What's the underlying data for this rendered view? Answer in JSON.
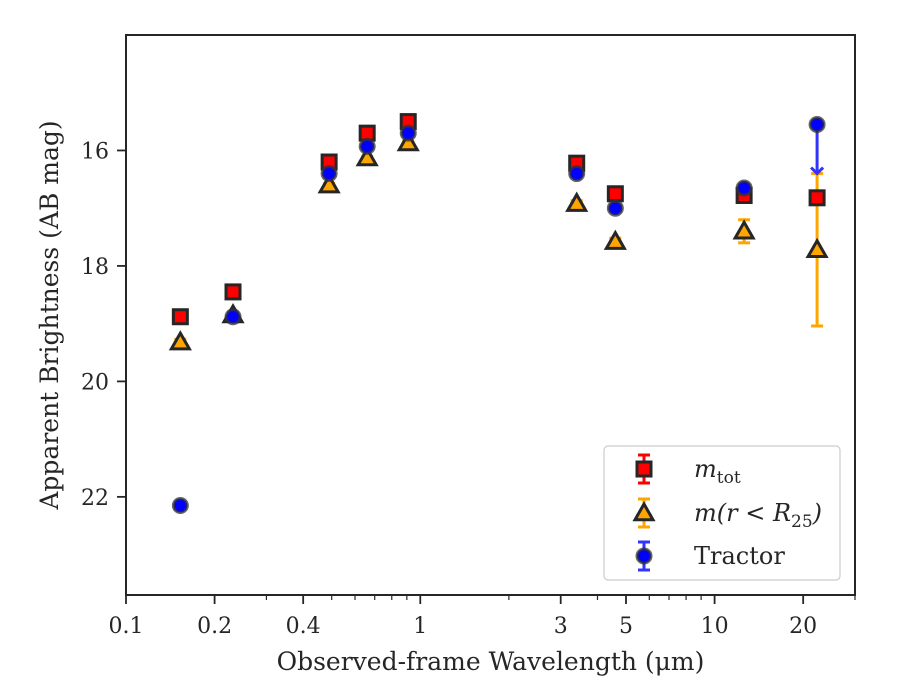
{
  "chart_data": {
    "type": "scatter",
    "xlabel": "Observed-frame Wavelength (μm)",
    "ylabel": "Apparent Brightness (AB mag)",
    "x_scale": "log",
    "xlim": [
      0.1,
      30
    ],
    "ylim": [
      23.7,
      14.0
    ],
    "y_inverted": true,
    "x_ticks": [
      {
        "value": 0.1,
        "label": "0.1"
      },
      {
        "value": 0.2,
        "label": "0.2"
      },
      {
        "value": 0.4,
        "label": "0.4"
      },
      {
        "value": 1,
        "label": "1"
      },
      {
        "value": 3,
        "label": "3"
      },
      {
        "value": 5,
        "label": "5"
      },
      {
        "value": 10,
        "label": "10"
      },
      {
        "value": 20,
        "label": "20"
      }
    ],
    "y_ticks": [
      {
        "value": 16,
        "label": "16"
      },
      {
        "value": 18,
        "label": "18"
      },
      {
        "value": 20,
        "label": "20"
      },
      {
        "value": 22,
        "label": "22"
      }
    ],
    "grid": false,
    "legend_position": "bottom-right",
    "series": [
      {
        "name": "m_tot",
        "legend_main": "m",
        "legend_sub": "tot",
        "marker": "square",
        "color": "#ff0000",
        "error_color": "#ff0000",
        "points": [
          {
            "x": 0.153,
            "y": 18.88,
            "err": 0.04
          },
          {
            "x": 0.231,
            "y": 18.45,
            "err": 0.03
          },
          {
            "x": 0.49,
            "y": 16.2,
            "err": 0.02
          },
          {
            "x": 0.66,
            "y": 15.7,
            "err": 0.02
          },
          {
            "x": 0.91,
            "y": 15.5,
            "err": 0.02
          },
          {
            "x": 3.4,
            "y": 16.22,
            "err": 0.03
          },
          {
            "x": 4.6,
            "y": 16.75,
            "err": 0.03
          },
          {
            "x": 12.6,
            "y": 16.78,
            "err": 0.05
          },
          {
            "x": 22.3,
            "y": 16.82,
            "err": 0.05
          }
        ]
      },
      {
        "name": "m(r<R25)",
        "legend_main": "m(r < R",
        "legend_sub": "25",
        "legend_tail": ")",
        "marker": "triangle",
        "color": "#ffa500",
        "error_color": "#ffa500",
        "points": [
          {
            "x": 0.153,
            "y": 19.32,
            "err": 0.05
          },
          {
            "x": 0.231,
            "y": 18.85,
            "err": 0.04
          },
          {
            "x": 0.49,
            "y": 16.6,
            "err": 0.03
          },
          {
            "x": 0.66,
            "y": 16.13,
            "err": 0.03
          },
          {
            "x": 0.91,
            "y": 15.87,
            "err": 0.03
          },
          {
            "x": 3.4,
            "y": 16.92,
            "err": 0.05
          },
          {
            "x": 4.6,
            "y": 17.58,
            "err": 0.06
          },
          {
            "x": 12.6,
            "y": 17.4,
            "err": 0.2
          },
          {
            "x": 22.3,
            "y": 17.72,
            "err": 1.32
          }
        ]
      },
      {
        "name": "Tractor",
        "legend_main": "Tractor",
        "marker": "circle",
        "color": "#0000ff",
        "error_color": "#3333ff",
        "points": [
          {
            "x": 0.153,
            "y": 22.15,
            "err": 0.05
          },
          {
            "x": 0.231,
            "y": 18.88,
            "err": 0.04
          },
          {
            "x": 0.49,
            "y": 16.4,
            "err": 0.02
          },
          {
            "x": 0.66,
            "y": 15.93,
            "err": 0.02
          },
          {
            "x": 0.91,
            "y": 15.7,
            "err": 0.02
          },
          {
            "x": 3.4,
            "y": 16.4,
            "err": 0.03
          },
          {
            "x": 4.6,
            "y": 17.0,
            "err": 0.04
          },
          {
            "x": 12.6,
            "y": 16.65,
            "err": 0.05
          },
          {
            "x": 22.3,
            "y": 15.55,
            "err": 0.0,
            "upper_limit_to": 16.4
          }
        ]
      }
    ]
  }
}
